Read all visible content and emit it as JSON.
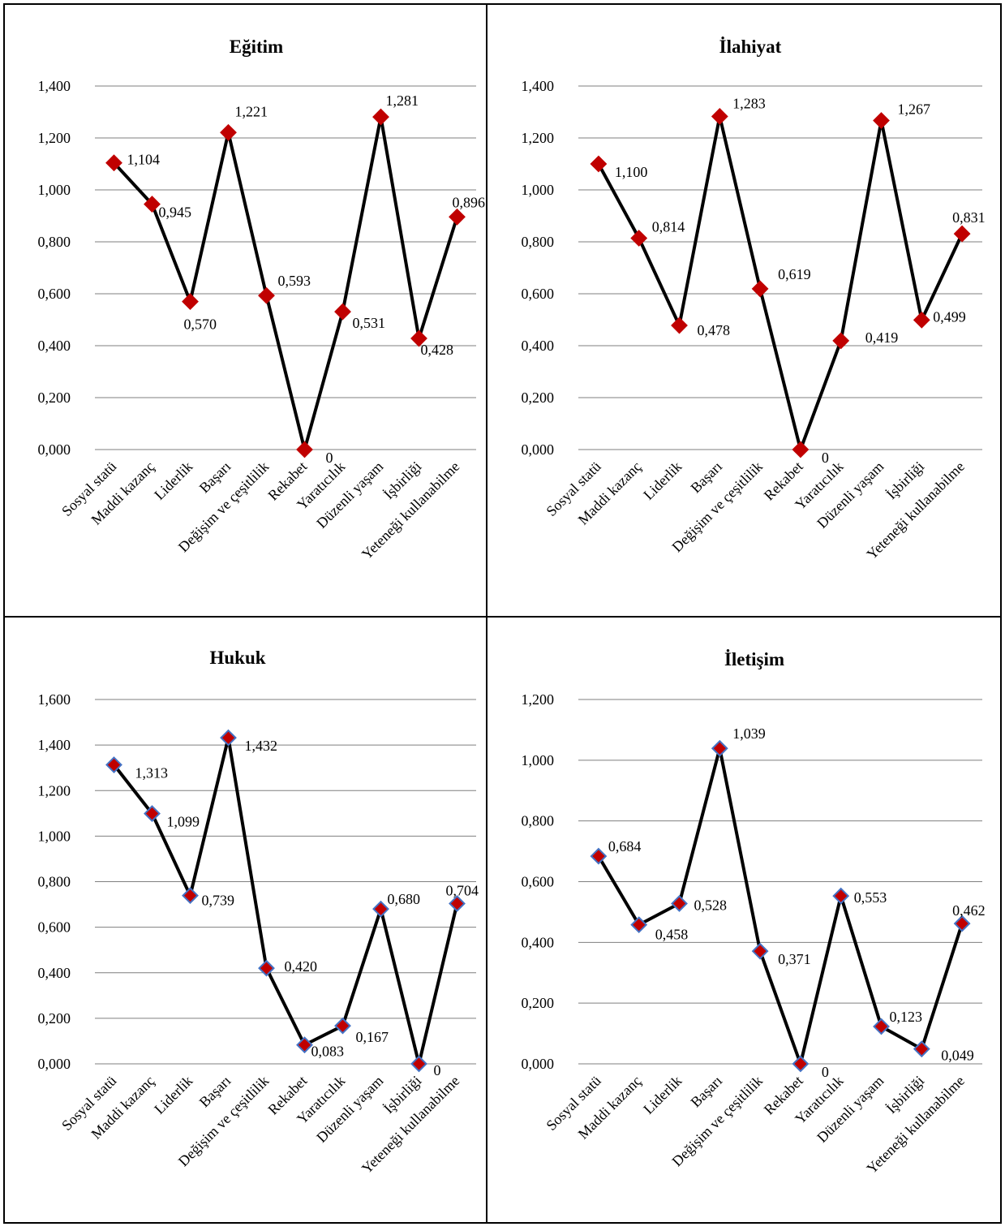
{
  "chart_data": [
    {
      "type": "line",
      "title": "Eğitim",
      "categories": [
        "Sosyal statü",
        "Maddi kazanç",
        "Liderlik",
        "Başarı",
        "Değişim ve çeşitlilik",
        "Rekabet",
        "Yaratıcılık",
        "Düzenli yaşam",
        "İşbirliği",
        "Yeteneği kullanabilme"
      ],
      "values": [
        1.104,
        0.945,
        0.57,
        1.221,
        0.593,
        0,
        0.531,
        1.281,
        0.428,
        0.896
      ],
      "data_labels": [
        "1,104",
        "0,945",
        "0,570",
        "1,221",
        "0,593",
        "0",
        "0,531",
        "1,281",
        "0,428",
        "0,896"
      ],
      "yticks": [
        "0,000",
        "0,200",
        "0,400",
        "0,600",
        "0,800",
        "1,000",
        "1,200",
        "1,400"
      ],
      "ylim": [
        0,
        1.4
      ],
      "grid": true,
      "marker_color": "#c00000",
      "marker_edge_color": "#c00000"
    },
    {
      "type": "line",
      "title": "İlahiyat",
      "categories": [
        "Sosyal statü",
        "Maddi kazanç",
        "Liderlik",
        "Başarı",
        "Değişim ve çeşitlilik",
        "Rekabet",
        "Yaratıcılık",
        "Düzenli yaşam",
        "İşbirliği",
        "Yeteneği kullanabilme"
      ],
      "values": [
        1.1,
        0.814,
        0.478,
        1.283,
        0.619,
        0,
        0.419,
        1.267,
        0.499,
        0.831
      ],
      "data_labels": [
        "1,100",
        "0,814",
        "0,478",
        "1,283",
        "0,619",
        "0",
        "0,419",
        "1,267",
        "0,499",
        "0,831"
      ],
      "yticks": [
        "0,000",
        "0,200",
        "0,400",
        "0,600",
        "0,800",
        "1,000",
        "1,200",
        "1,400"
      ],
      "ylim": [
        0,
        1.4
      ],
      "grid": true,
      "marker_color": "#c00000",
      "marker_edge_color": "#c00000"
    },
    {
      "type": "line",
      "title": "Hukuk",
      "categories": [
        "Sosyal statü",
        "Maddi kazanç",
        "Liderlik",
        "Başarı",
        "Değişim ve çeşitlilik",
        "Rekabet",
        "Yaratıcılık",
        "Düzenli yaşam",
        "İşbirliği",
        "Yeteneği kullanabilme"
      ],
      "values": [
        1.313,
        1.099,
        0.739,
        1.432,
        0.42,
        0.083,
        0.167,
        0.68,
        0,
        0.704
      ],
      "data_labels": [
        "1,313",
        "1,099",
        "0,739",
        "1,432",
        "0,420",
        "0,083",
        "0,167",
        "0,680",
        "0",
        "0,704"
      ],
      "yticks": [
        "0,000",
        "0,200",
        "0,400",
        "0,600",
        "0,800",
        "1,000",
        "1,200",
        "1,400",
        "1,600"
      ],
      "ylim": [
        0,
        1.6
      ],
      "grid": true,
      "marker_color": "#c00000",
      "marker_edge_color": "#4472c4"
    },
    {
      "type": "line",
      "title": "İletişim",
      "categories": [
        "Sosyal statü",
        "Maddi kazanç",
        "Liderlik",
        "Başarı",
        "Değişim ve çeşitlilik",
        "Rekabet",
        "Yaratıcılık",
        "Düzenli yaşam",
        "İşbirliği",
        "Yeteneği kullanabilme"
      ],
      "values": [
        0.684,
        0.458,
        0.528,
        1.039,
        0.371,
        0,
        0.553,
        0.123,
        0.049,
        0.462
      ],
      "data_labels": [
        "0,684",
        "0,458",
        "0,528",
        "1,039",
        "0,371",
        "0",
        "0,553",
        "0,123",
        "0,049",
        "0,462"
      ],
      "yticks": [
        "0,000",
        "0,200",
        "0,400",
        "0,600",
        "0,800",
        "1,000",
        "1,200"
      ],
      "ylim": [
        0,
        1.2
      ],
      "grid": true,
      "marker_color": "#c00000",
      "marker_edge_color": "#4472c4"
    }
  ]
}
